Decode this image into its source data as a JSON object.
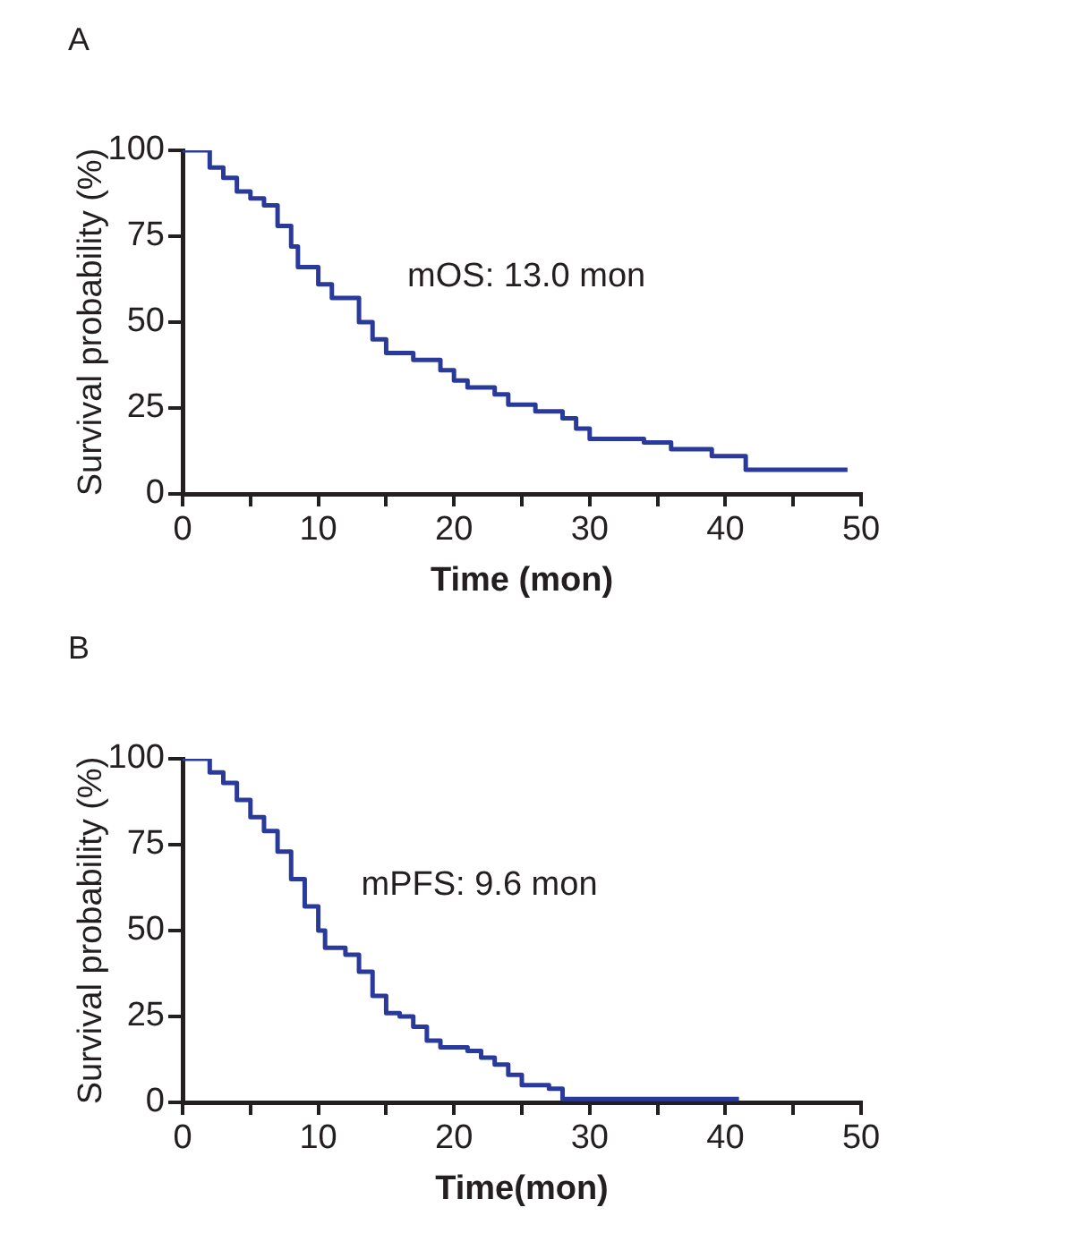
{
  "chart_data": [
    {
      "type": "step",
      "title": "A",
      "xlabel": "Time (mon)",
      "ylabel": "Survival probability (%)",
      "annotations": [
        {
          "text": "mOS: 13.0 mon",
          "x": 13.0,
          "y": 50
        }
      ],
      "x": [
        0,
        1.3,
        2,
        3,
        4,
        5,
        6,
        7,
        8,
        8.5,
        10,
        11,
        12,
        13,
        14,
        15,
        17,
        19,
        20,
        21,
        23,
        24,
        26,
        28,
        29,
        30,
        33,
        34,
        36,
        38,
        39,
        41,
        41.5,
        49
      ],
      "series": [
        {
          "color": "#2a3a9a",
          "values": [
            100,
            100,
            95,
            92,
            88,
            86,
            84,
            78,
            72,
            66,
            61,
            57,
            57,
            50,
            45,
            41,
            39,
            36,
            33,
            31,
            29,
            26,
            24,
            22,
            19,
            16,
            16,
            15,
            13,
            13,
            11,
            11,
            7,
            7
          ]
        }
      ],
      "xlim": [
        0,
        50
      ],
      "ylim": [
        0,
        100
      ],
      "xticks": [
        0,
        {
          "value": 5,
          "label": null
        },
        10,
        {
          "value": 15,
          "label": null
        },
        20,
        {
          "value": 25,
          "label": null
        },
        30,
        {
          "value": 35,
          "label": null
        },
        40,
        {
          "value": 45,
          "label": null
        },
        50
      ],
      "yticks": [
        0,
        25,
        50,
        75,
        100
      ],
      "grid": false,
      "legend": false,
      "marker": "none",
      "line_style": "solid"
    },
    {
      "type": "step",
      "title": "B",
      "xlabel": "Time(mon)",
      "ylabel": "Survival probability (%)",
      "annotations": [
        {
          "text": "mPFS: 9.6 mon",
          "x": 9.6,
          "y": 50
        }
      ],
      "x": [
        0,
        1.3,
        2,
        3,
        4,
        5,
        6,
        7,
        8,
        9,
        10,
        10.5,
        12,
        13,
        14,
        15,
        16,
        17,
        18,
        19,
        21,
        22,
        23,
        24,
        25,
        26,
        27,
        28,
        41
      ],
      "series": [
        {
          "color": "#2a3a9a",
          "values": [
            100,
            100,
            96,
            93,
            88,
            83,
            79,
            73,
            65,
            57,
            50,
            45,
            43,
            38,
            31,
            26,
            25,
            22,
            18,
            16,
            15,
            13,
            11,
            8,
            5,
            5,
            4,
            1,
            1
          ]
        }
      ],
      "xlim": [
        0,
        50
      ],
      "ylim": [
        0,
        100
      ],
      "xticks": [
        0,
        {
          "value": 5,
          "label": null
        },
        10,
        {
          "value": 15,
          "label": null
        },
        20,
        {
          "value": 25,
          "label": null
        },
        30,
        {
          "value": 35,
          "label": null
        },
        40,
        {
          "value": 45,
          "label": null
        },
        50
      ],
      "yticks": [
        0,
        25,
        50,
        75,
        100
      ],
      "grid": false,
      "legend": false,
      "marker": "none",
      "line_style": "solid"
    }
  ]
}
